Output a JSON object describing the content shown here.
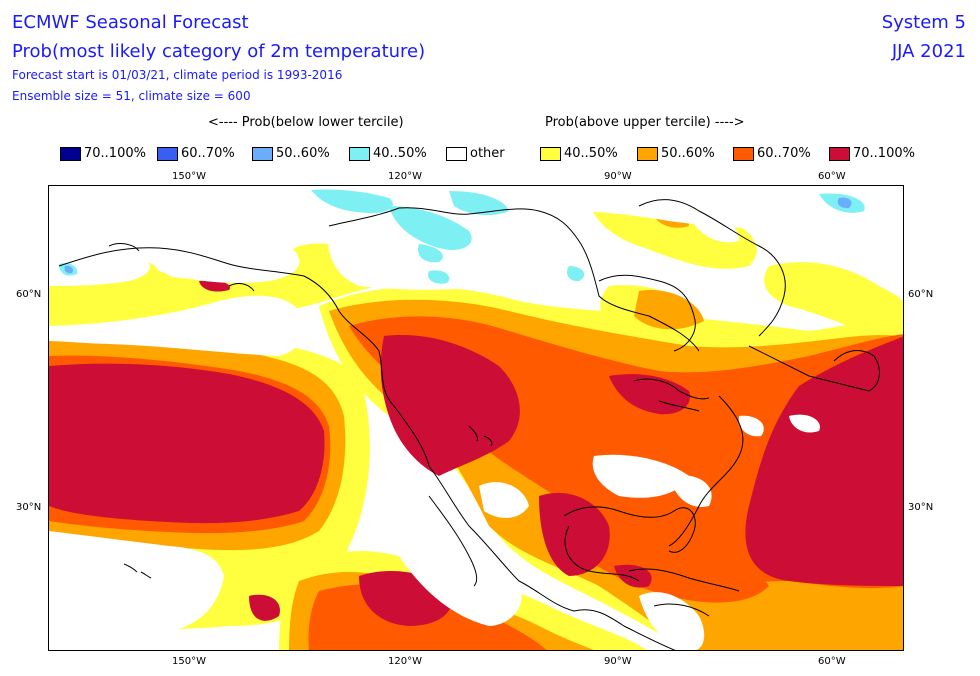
{
  "header": {
    "title": "ECMWF Seasonal Forecast",
    "subtitle": "Prob(most likely category of 2m temperature)",
    "forecast_line": "Forecast start is 01/03/21, climate period is 1993-2016",
    "ensemble_line": "Ensemble size = 51, climate size = 600",
    "system": "System 5",
    "season": "JJA 2021"
  },
  "terciles": {
    "below": "<---- Prob(below lower tercile)",
    "above": "Prob(above upper tercile) ---->"
  },
  "legend": [
    {
      "label": "70..100%",
      "color": "#000090"
    },
    {
      "label": "60..70%",
      "color": "#3a5ef0"
    },
    {
      "label": "50..60%",
      "color": "#6aaefa"
    },
    {
      "label": "40..50%",
      "color": "#7ef0f4"
    },
    {
      "label": "other",
      "color": "#ffffff"
    },
    {
      "label": "40..50%",
      "color": "#ffff40"
    },
    {
      "label": "50..60%",
      "color": "#ffa500"
    },
    {
      "label": "60..70%",
      "color": "#ff5a00"
    },
    {
      "label": "70..100%",
      "color": "#cc0d35"
    }
  ],
  "axes": {
    "top_lon": [
      "150°W",
      "120°W",
      "90°W",
      "60°W"
    ],
    "bottom_lon": [
      "150°W",
      "120°W",
      "90°W",
      "60°W"
    ],
    "left_lat": [
      "60°N",
      "30°N"
    ],
    "right_lat": [
      "60°N",
      "30°N"
    ]
  },
  "colors": {
    "title_text": "#1a1aff",
    "coastline": "#000000",
    "blue_40_50": "#7ef0f4",
    "blue_50_60": "#6aaefa",
    "yellow_40_50": "#ffff40",
    "orange_50_60": "#ffa500",
    "orange_60_70": "#ff5a00",
    "red_70_100": "#cc0d35"
  }
}
